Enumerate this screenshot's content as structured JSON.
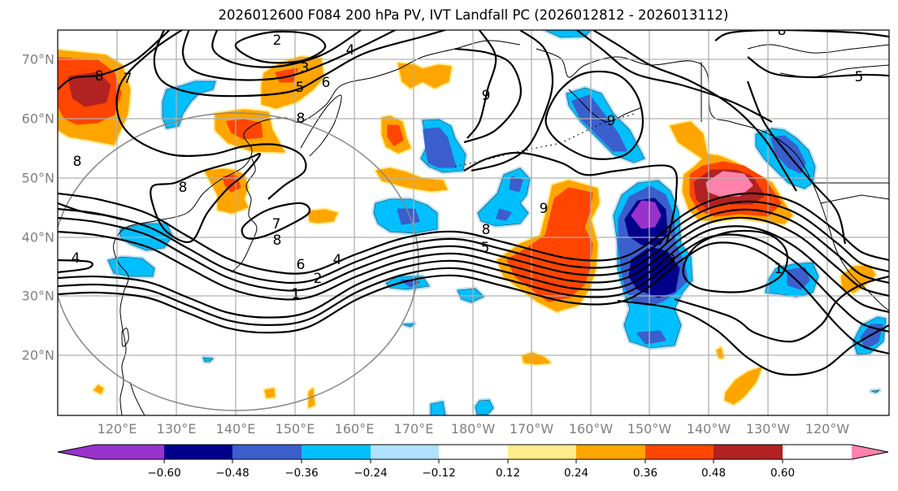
{
  "title": "2026012600 F084 200 hPa PV, IVT Landfall PC (2026012812 - 2026013112)",
  "lat_labels": [
    "70°N",
    "60°N",
    "50°N",
    "40°N",
    "30°N",
    "20°N"
  ],
  "lon_labels": [
    "120°E",
    "130°E",
    "140°E",
    "150°E",
    "160°E",
    "170°E",
    "180°W",
    "170°W",
    "160°W",
    "150°W",
    "140°W",
    "130°W",
    "120°W"
  ],
  "colorbar": {
    "ticks": [
      "−0.60",
      "−0.48",
      "−0.36",
      "−0.24",
      "−0.12",
      "0.12",
      "0.24",
      "0.36",
      "0.48",
      "0.60"
    ],
    "colors": [
      "#9932CC",
      "#00008B",
      "#3A5FCD",
      "#00BFFF",
      "#B0E2FF",
      "#FFFFFF",
      "#FFEC8B",
      "#FFA500",
      "#FF4500",
      "#B22222",
      "#FF82AB"
    ]
  },
  "contour_labels": [
    "8",
    "7",
    "2",
    "3",
    "5",
    "6",
    "4",
    "8",
    "8",
    "8",
    "7",
    "8",
    "4",
    "6",
    "4",
    "2",
    "1",
    "9",
    "9",
    "8",
    "5",
    "3",
    "1",
    "9",
    "5",
    "8"
  ]
}
